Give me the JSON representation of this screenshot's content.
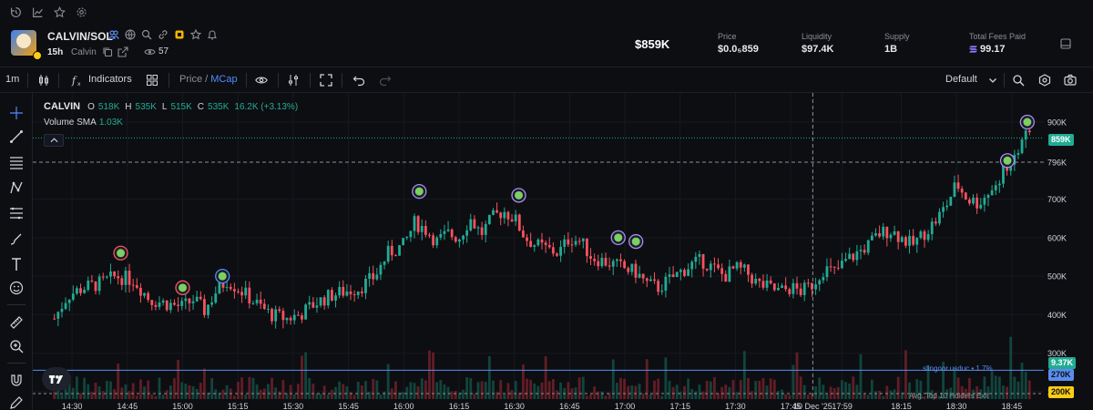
{
  "topbar": {
    "icons": [
      "history-icon",
      "chart-trend-icon",
      "star-icon",
      "gear-icon"
    ]
  },
  "header": {
    "pair": "CALVIN/SOL",
    "age": "15h",
    "ticker": "Calvin",
    "viewers": "57",
    "market_cap": "$859K",
    "stats": [
      {
        "label": "Price",
        "value": "$0.0₅859"
      },
      {
        "label": "Liquidity",
        "value": "$97.4K"
      },
      {
        "label": "Supply",
        "value": "1B"
      },
      {
        "label": "Total Fees Paid",
        "value": "99.17"
      }
    ]
  },
  "toolbar": {
    "timeframe": "1m",
    "indicators_label": "Indicators",
    "price_label": "Price",
    "slash": "/",
    "mcap_label": "MCap",
    "layout_label": "Default"
  },
  "legend": {
    "symbol": "CALVIN",
    "o_key": "O",
    "o_val": "518K",
    "h_key": "H",
    "h_val": "535K",
    "l_key": "L",
    "l_val": "515K",
    "c_key": "C",
    "c_val": "535K",
    "change": "16.2K (+3.13%)",
    "volume_label": "Volume SMA",
    "volume_value": "1.03K"
  },
  "price_axis": [
    "900K",
    "796K",
    "700K",
    "600K",
    "500K",
    "400K",
    "300K",
    "200K"
  ],
  "badges": {
    "current": "859K",
    "volume": "9.37K",
    "trader": "270K",
    "avg": "200K"
  },
  "annotations": {
    "trader": "slingoor.usduc • 1.7%",
    "avg": "Avg. Top 10 Holders Exit"
  },
  "time_axis": [
    "14:30",
    "14:45",
    "15:00",
    "15:15",
    "15:30",
    "15:45",
    "16:00",
    "16:15",
    "16:30",
    "16:45",
    "17:00",
    "17:15",
    "17:30",
    "17:45",
    "10 Dec '25",
    "17:59",
    "18:15",
    "18:30",
    "18:45"
  ],
  "colors": {
    "up": "#22ab94",
    "down": "#f7525f",
    "accent": "#4f8cff"
  },
  "chart_data": {
    "type": "candlestick",
    "ylim": [
      180000,
      940000
    ],
    "crosshair": {
      "price": "796K",
      "time": "10 Dec '25"
    },
    "close_path": [
      [
        14.42,
        390000
      ],
      [
        14.48,
        450000
      ],
      [
        14.55,
        470000
      ],
      [
        14.62,
        480000
      ],
      [
        14.7,
        500000
      ],
      [
        14.78,
        490000
      ],
      [
        14.85,
        440000
      ],
      [
        14.92,
        430000
      ],
      [
        15.0,
        420000
      ],
      [
        15.05,
        440000
      ],
      [
        15.1,
        410000
      ],
      [
        15.15,
        460000
      ],
      [
        15.2,
        490000
      ],
      [
        15.27,
        460000
      ],
      [
        15.33,
        430000
      ],
      [
        15.4,
        400000
      ],
      [
        15.47,
        390000
      ],
      [
        15.53,
        400000
      ],
      [
        15.6,
        430000
      ],
      [
        15.67,
        450000
      ],
      [
        15.73,
        460000
      ],
      [
        15.8,
        470000
      ],
      [
        15.87,
        500000
      ],
      [
        15.93,
        560000
      ],
      [
        16.0,
        580000
      ],
      [
        16.05,
        640000
      ],
      [
        16.1,
        620000
      ],
      [
        16.15,
        590000
      ],
      [
        16.2,
        610000
      ],
      [
        16.25,
        600000
      ],
      [
        16.3,
        650000
      ],
      [
        16.35,
        610000
      ],
      [
        16.4,
        650000
      ],
      [
        16.45,
        670000
      ],
      [
        16.5,
        650000
      ],
      [
        16.55,
        600000
      ],
      [
        16.6,
        580000
      ],
      [
        16.65,
        570000
      ],
      [
        16.7,
        560000
      ],
      [
        16.75,
        600000
      ],
      [
        16.8,
        590000
      ],
      [
        16.85,
        550000
      ],
      [
        16.9,
        540000
      ],
      [
        16.95,
        530000
      ],
      [
        17.0,
        520000
      ],
      [
        17.05,
        510000
      ],
      [
        17.1,
        480000
      ],
      [
        17.15,
        470000
      ],
      [
        17.2,
        490000
      ],
      [
        17.25,
        510000
      ],
      [
        17.3,
        530000
      ],
      [
        17.35,
        540000
      ],
      [
        17.4,
        520000
      ],
      [
        17.45,
        500000
      ],
      [
        17.5,
        520000
      ],
      [
        17.55,
        510000
      ],
      [
        17.6,
        480000
      ],
      [
        17.65,
        470000
      ],
      [
        17.7,
        460000
      ],
      [
        17.75,
        470000
      ],
      [
        17.8,
        460000
      ],
      [
        17.85,
        480000
      ],
      [
        17.9,
        520000
      ],
      [
        17.95,
        510000
      ],
      [
        18.0,
        540000
      ],
      [
        18.05,
        560000
      ],
      [
        18.1,
        580000
      ],
      [
        18.15,
        610000
      ],
      [
        18.2,
        620000
      ],
      [
        18.25,
        600000
      ],
      [
        18.3,
        580000
      ],
      [
        18.35,
        610000
      ],
      [
        18.4,
        640000
      ],
      [
        18.45,
        680000
      ],
      [
        18.5,
        740000
      ],
      [
        18.55,
        700000
      ],
      [
        18.6,
        690000
      ],
      [
        18.65,
        720000
      ],
      [
        18.7,
        760000
      ],
      [
        18.75,
        800000
      ],
      [
        18.8,
        860000
      ],
      [
        18.83,
        859000
      ]
    ]
  }
}
